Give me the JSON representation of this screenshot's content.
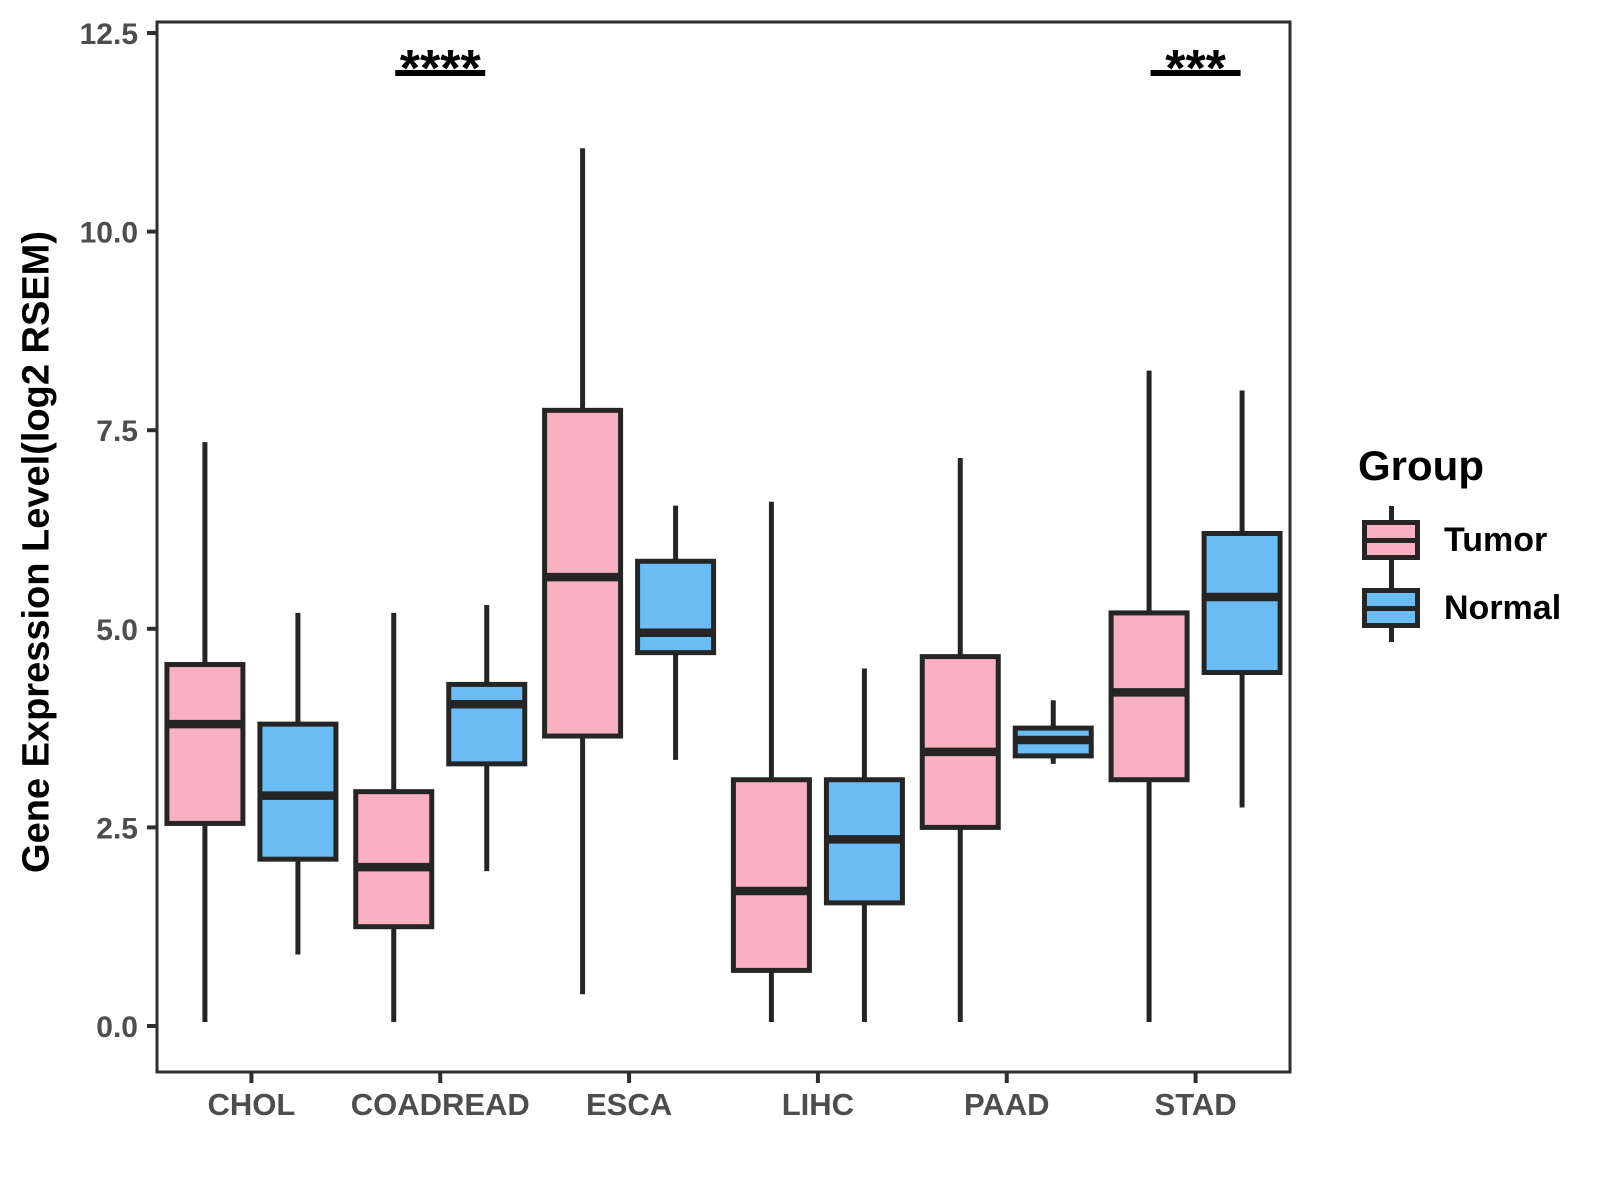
{
  "figure": {
    "background": "#FFFFFF"
  },
  "chart_data": {
    "type": "boxplot",
    "title": "",
    "xlabel": "",
    "ylabel": "Gene Expression Level(log2 RSEM)",
    "ylim": [
      0,
      12.5
    ],
    "yticks": [
      "0.0",
      "2.5",
      "5.0",
      "7.5",
      "10.0",
      "12.5"
    ],
    "categories": [
      "CHOL",
      "COADREAD",
      "ESCA",
      "LIHC",
      "PAAD",
      "STAD"
    ],
    "grid": "off",
    "legend_position": "right",
    "series": [
      {
        "name": "Tumor",
        "fill": "#F9B0C0",
        "boxes": [
          {
            "category": "CHOL",
            "whisker_low": 0.05,
            "q1": 2.55,
            "median": 3.8,
            "q3": 4.55,
            "whisker_high": 7.35
          },
          {
            "category": "COADREAD",
            "whisker_low": 0.05,
            "q1": 1.25,
            "median": 2.0,
            "q3": 2.95,
            "whisker_high": 5.2
          },
          {
            "category": "ESCA",
            "whisker_low": 0.4,
            "q1": 3.65,
            "median": 5.65,
            "q3": 7.75,
            "whisker_high": 11.05
          },
          {
            "category": "LIHC",
            "whisker_low": 0.05,
            "q1": 0.7,
            "median": 1.7,
            "q3": 3.1,
            "whisker_high": 6.6
          },
          {
            "category": "PAAD",
            "whisker_low": 0.05,
            "q1": 2.5,
            "median": 3.45,
            "q3": 4.65,
            "whisker_high": 7.15
          },
          {
            "category": "STAD",
            "whisker_low": 0.05,
            "q1": 3.1,
            "median": 4.2,
            "q3": 5.2,
            "whisker_high": 8.25
          }
        ]
      },
      {
        "name": "Normal",
        "fill": "#6CBCF4",
        "boxes": [
          {
            "category": "CHOL",
            "whisker_low": 0.9,
            "q1": 2.1,
            "median": 2.9,
            "q3": 3.8,
            "whisker_high": 5.2
          },
          {
            "category": "COADREAD",
            "whisker_low": 1.95,
            "q1": 3.3,
            "median": 4.05,
            "q3": 4.3,
            "whisker_high": 5.3
          },
          {
            "category": "ESCA",
            "whisker_low": 3.35,
            "q1": 4.7,
            "median": 4.95,
            "q3": 5.85,
            "whisker_high": 6.55
          },
          {
            "category": "LIHC",
            "whisker_low": 0.05,
            "q1": 1.55,
            "median": 2.35,
            "q3": 3.1,
            "whisker_high": 4.5
          },
          {
            "category": "PAAD",
            "whisker_low": 3.3,
            "q1": 3.4,
            "median": 3.6,
            "q3": 3.75,
            "whisker_high": 4.1
          },
          {
            "category": "STAD",
            "whisker_low": 2.75,
            "q1": 4.45,
            "median": 5.4,
            "q3": 6.2,
            "whisker_high": 8.0
          }
        ]
      }
    ],
    "significance": [
      {
        "category": "COADREAD",
        "label": "****"
      },
      {
        "category": "STAD",
        "label": "***"
      }
    ],
    "legend": {
      "title": "Group",
      "entries": [
        {
          "label": "Tumor",
          "fill": "#F9B0C0"
        },
        {
          "label": "Normal",
          "fill": "#6CBCF4"
        }
      ]
    },
    "colors": {
      "box_stroke": "#252525",
      "panel_border": "#2E2E2E",
      "axis_text": "#4D4D4D",
      "annotation": "#000000"
    }
  }
}
